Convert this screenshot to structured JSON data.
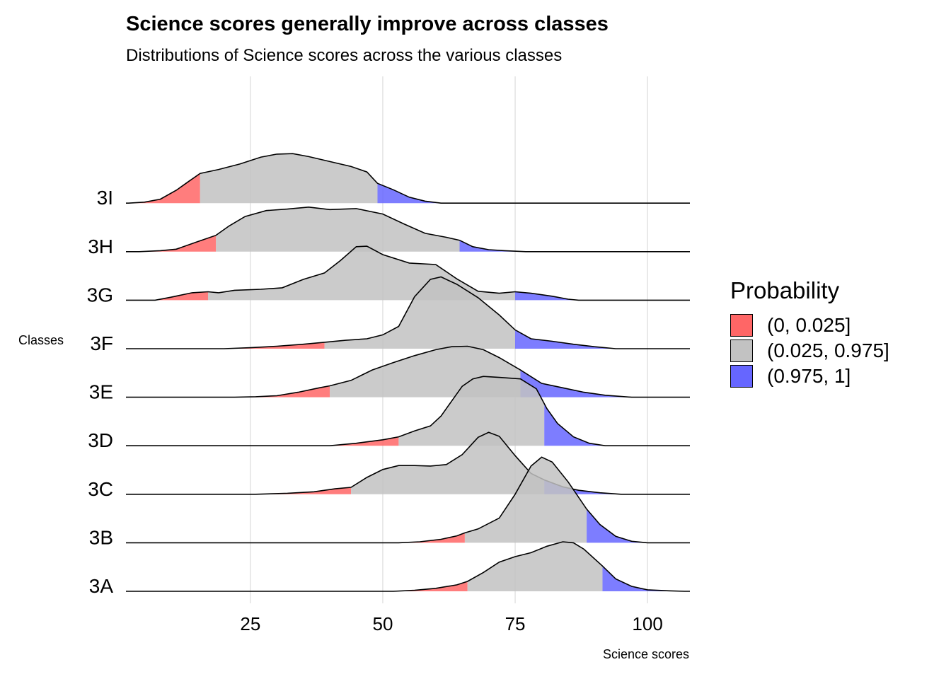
{
  "title": "Science scores generally improve across classes",
  "subtitle": "Distributions of Science scores across the various classes",
  "legend": {
    "title": "Probability",
    "items": [
      {
        "label": "(0, 0.025]",
        "color": "#FF6666"
      },
      {
        "label": "(0.025, 0.975]",
        "color": "#C2C2C2"
      },
      {
        "label": "(0.975, 1]",
        "color": "#6666FF"
      }
    ]
  },
  "chart_data": {
    "type": "area",
    "subtype": "ridgeline",
    "xlabel": "Science scores",
    "ylabel": "Classes",
    "xlim": [
      1.5,
      108
    ],
    "xticks": [
      25,
      50,
      75,
      100
    ],
    "grid": "vertical major gridlines",
    "legend_position": "right",
    "categories": [
      "3A",
      "3B",
      "3C",
      "3D",
      "3E",
      "3F",
      "3G",
      "3H",
      "3I"
    ],
    "series": [
      {
        "name": "3I",
        "lower_quantile_cutoff": 15.5,
        "upper_quantile_cutoff": 49,
        "density": [
          [
            2,
            0
          ],
          [
            5,
            0.02
          ],
          [
            8,
            0.08
          ],
          [
            11,
            0.26
          ],
          [
            13.5,
            0.45
          ],
          [
            15.5,
            0.6
          ],
          [
            19,
            0.68
          ],
          [
            23,
            0.79
          ],
          [
            27,
            0.93
          ],
          [
            30,
            0.99
          ],
          [
            33,
            1.0
          ],
          [
            36,
            0.94
          ],
          [
            40,
            0.84
          ],
          [
            44,
            0.74
          ],
          [
            47,
            0.63
          ],
          [
            49,
            0.4
          ],
          [
            52,
            0.27
          ],
          [
            55,
            0.12
          ],
          [
            58,
            0.04
          ],
          [
            61,
            0
          ]
        ]
      },
      {
        "name": "3H",
        "lower_quantile_cutoff": 18.5,
        "upper_quantile_cutoff": 64.5,
        "density": [
          [
            4,
            0
          ],
          [
            8,
            0.02
          ],
          [
            11,
            0.05
          ],
          [
            15,
            0.2
          ],
          [
            18.5,
            0.33
          ],
          [
            21,
            0.52
          ],
          [
            24,
            0.71
          ],
          [
            28,
            0.83
          ],
          [
            32,
            0.86
          ],
          [
            36,
            0.9
          ],
          [
            40,
            0.85
          ],
          [
            45,
            0.87
          ],
          [
            50,
            0.76
          ],
          [
            54,
            0.56
          ],
          [
            58,
            0.37
          ],
          [
            62,
            0.29
          ],
          [
            64.5,
            0.23
          ],
          [
            67,
            0.1
          ],
          [
            70,
            0.04
          ],
          [
            73,
            0.02
          ],
          [
            77,
            0
          ]
        ]
      },
      {
        "name": "3G",
        "lower_quantile_cutoff": 17,
        "upper_quantile_cutoff": 75,
        "density": [
          [
            7,
            0
          ],
          [
            10,
            0.06
          ],
          [
            14,
            0.15
          ],
          [
            17,
            0.17
          ],
          [
            19,
            0.15
          ],
          [
            22,
            0.2
          ],
          [
            27,
            0.22
          ],
          [
            31,
            0.25
          ],
          [
            35,
            0.42
          ],
          [
            39,
            0.55
          ],
          [
            42,
            0.8
          ],
          [
            45,
            1.08
          ],
          [
            47,
            1.09
          ],
          [
            50,
            0.92
          ],
          [
            55,
            0.75
          ],
          [
            60,
            0.72
          ],
          [
            64,
            0.43
          ],
          [
            68,
            0.18
          ],
          [
            72,
            0.14
          ],
          [
            75,
            0.17
          ],
          [
            78,
            0.14
          ],
          [
            82,
            0.08
          ],
          [
            85,
            0.02
          ],
          [
            87,
            0
          ]
        ]
      },
      {
        "name": "3F",
        "lower_quantile_cutoff": 39,
        "upper_quantile_cutoff": 75,
        "density": [
          [
            20,
            0
          ],
          [
            25,
            0.02
          ],
          [
            30,
            0.05
          ],
          [
            35,
            0.09
          ],
          [
            39,
            0.13
          ],
          [
            43,
            0.17
          ],
          [
            47,
            0.2
          ],
          [
            50,
            0.28
          ],
          [
            53,
            0.45
          ],
          [
            56,
            1.05
          ],
          [
            59,
            1.4
          ],
          [
            61,
            1.45
          ],
          [
            64,
            1.3
          ],
          [
            68,
            1.03
          ],
          [
            72,
            0.68
          ],
          [
            75,
            0.38
          ],
          [
            78,
            0.2
          ],
          [
            82,
            0.15
          ],
          [
            86,
            0.09
          ],
          [
            90,
            0.04
          ],
          [
            94,
            0
          ]
        ]
      },
      {
        "name": "3E",
        "lower_quantile_cutoff": 40,
        "upper_quantile_cutoff": 76,
        "density": [
          [
            22,
            0
          ],
          [
            26,
            0.01
          ],
          [
            30,
            0.03
          ],
          [
            34,
            0.1
          ],
          [
            38,
            0.19
          ],
          [
            40,
            0.23
          ],
          [
            44,
            0.34
          ],
          [
            48,
            0.55
          ],
          [
            52,
            0.7
          ],
          [
            56,
            0.84
          ],
          [
            60,
            0.96
          ],
          [
            63,
            1.02
          ],
          [
            66,
            1.03
          ],
          [
            69,
            0.96
          ],
          [
            72,
            0.8
          ],
          [
            76,
            0.55
          ],
          [
            80,
            0.28
          ],
          [
            84,
            0.19
          ],
          [
            88,
            0.1
          ],
          [
            92,
            0.04
          ],
          [
            97,
            0
          ]
        ]
      },
      {
        "name": "3D",
        "lower_quantile_cutoff": 53,
        "upper_quantile_cutoff": 80.5,
        "density": [
          [
            40,
            0
          ],
          [
            45,
            0.05
          ],
          [
            50,
            0.12
          ],
          [
            53,
            0.18
          ],
          [
            56,
            0.3
          ],
          [
            59,
            0.4
          ],
          [
            61,
            0.6
          ],
          [
            63,
            0.9
          ],
          [
            65,
            1.2
          ],
          [
            67,
            1.35
          ],
          [
            69,
            1.4
          ],
          [
            72,
            1.38
          ],
          [
            76,
            1.35
          ],
          [
            79,
            1.15
          ],
          [
            81,
            0.75
          ],
          [
            83,
            0.45
          ],
          [
            86,
            0.18
          ],
          [
            89,
            0.05
          ],
          [
            92,
            0
          ]
        ]
      },
      {
        "name": "3C",
        "lower_quantile_cutoff": 44,
        "upper_quantile_cutoff": 80.5,
        "density": [
          [
            26,
            0
          ],
          [
            32,
            0.02
          ],
          [
            37,
            0.05
          ],
          [
            41,
            0.11
          ],
          [
            44,
            0.14
          ],
          [
            47,
            0.34
          ],
          [
            50,
            0.5
          ],
          [
            53,
            0.58
          ],
          [
            56,
            0.58
          ],
          [
            59,
            0.57
          ],
          [
            62,
            0.6
          ],
          [
            65,
            0.8
          ],
          [
            68,
            1.15
          ],
          [
            70,
            1.25
          ],
          [
            72,
            1.17
          ],
          [
            75,
            0.78
          ],
          [
            78,
            0.42
          ],
          [
            80.5,
            0.29
          ],
          [
            84,
            0.15
          ],
          [
            87,
            0.08
          ],
          [
            91,
            0.03
          ],
          [
            95,
            0
          ]
        ]
      },
      {
        "name": "3B",
        "lower_quantile_cutoff": 65.5,
        "upper_quantile_cutoff": 88.5,
        "density": [
          [
            53,
            0
          ],
          [
            57,
            0.02
          ],
          [
            61,
            0.07
          ],
          [
            64,
            0.14
          ],
          [
            65.5,
            0.2
          ],
          [
            68,
            0.28
          ],
          [
            72,
            0.5
          ],
          [
            75,
            0.98
          ],
          [
            78,
            1.55
          ],
          [
            80,
            1.73
          ],
          [
            82,
            1.63
          ],
          [
            85,
            1.23
          ],
          [
            88.5,
            0.68
          ],
          [
            91,
            0.37
          ],
          [
            94,
            0.13
          ],
          [
            97,
            0.03
          ],
          [
            100,
            0
          ]
        ]
      },
      {
        "name": "3A",
        "lower_quantile_cutoff": 66,
        "upper_quantile_cutoff": 91.5,
        "density": [
          [
            52,
            0
          ],
          [
            56,
            0.02
          ],
          [
            60,
            0.06
          ],
          [
            64,
            0.13
          ],
          [
            66,
            0.2
          ],
          [
            69,
            0.38
          ],
          [
            72,
            0.59
          ],
          [
            75,
            0.7
          ],
          [
            78,
            0.78
          ],
          [
            81,
            0.91
          ],
          [
            84,
            1.0
          ],
          [
            86,
            0.98
          ],
          [
            88,
            0.85
          ],
          [
            91.5,
            0.51
          ],
          [
            94,
            0.25
          ],
          [
            97,
            0.1
          ],
          [
            100,
            0.03
          ],
          [
            104,
            0.01
          ],
          [
            107,
            0
          ]
        ]
      }
    ]
  }
}
